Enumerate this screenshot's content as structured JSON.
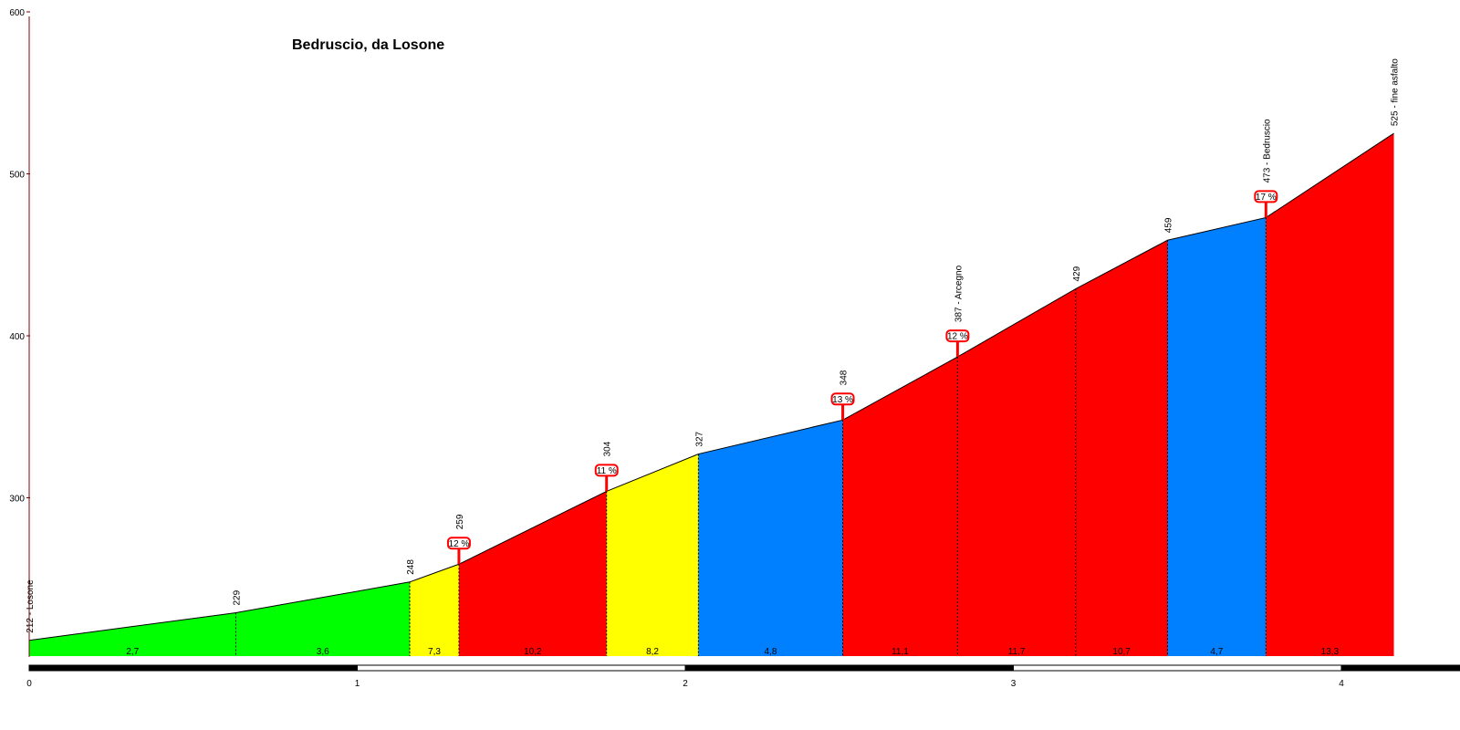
{
  "chart_data": {
    "type": "area",
    "title": "Bedruscio, da Losone",
    "xlim": [
      0,
      4.4
    ],
    "ylim": [
      200,
      600
    ],
    "x_ticks": [
      "0",
      "1",
      "2",
      "3",
      "4"
    ],
    "y_ticks": [
      "300",
      "400",
      "500",
      "600"
    ],
    "points": [
      {
        "x": 0.0,
        "y": 212,
        "label": "212 - Losone"
      },
      {
        "x": 0.63,
        "y": 229,
        "label": "229"
      },
      {
        "x": 1.16,
        "y": 248,
        "label": "248"
      },
      {
        "x": 1.31,
        "y": 259,
        "label": "259"
      },
      {
        "x": 1.76,
        "y": 304,
        "label": "304"
      },
      {
        "x": 2.04,
        "y": 327,
        "label": "327"
      },
      {
        "x": 2.48,
        "y": 348,
        "label": "348"
      },
      {
        "x": 2.83,
        "y": 387,
        "label": "387 - Arcegno"
      },
      {
        "x": 3.19,
        "y": 429,
        "label": "429"
      },
      {
        "x": 3.47,
        "y": 459,
        "label": "459"
      },
      {
        "x": 3.77,
        "y": 473,
        "label": "473 - Bedruscio"
      },
      {
        "x": 4.16,
        "y": 525,
        "label": "525 - fine asfalto"
      }
    ],
    "segments": [
      {
        "from": 0.0,
        "to": 0.63,
        "gradient": "2,7",
        "color": "#00ff00"
      },
      {
        "from": 0.63,
        "to": 1.16,
        "gradient": "3,6",
        "color": "#00ff00"
      },
      {
        "from": 1.16,
        "to": 1.31,
        "gradient": "7,3",
        "color": "#ffff00"
      },
      {
        "from": 1.31,
        "to": 1.76,
        "gradient": "10,2",
        "color": "#ff0000"
      },
      {
        "from": 1.76,
        "to": 2.04,
        "gradient": "8,2",
        "color": "#ffff00"
      },
      {
        "from": 2.04,
        "to": 2.48,
        "gradient": "4,8",
        "color": "#0080ff"
      },
      {
        "from": 2.48,
        "to": 2.83,
        "gradient": "11,1",
        "color": "#ff0000"
      },
      {
        "from": 2.83,
        "to": 3.19,
        "gradient": "11,7",
        "color": "#ff0000"
      },
      {
        "from": 3.19,
        "to": 3.47,
        "gradient": "10,7",
        "color": "#ff0000"
      },
      {
        "from": 3.47,
        "to": 3.77,
        "gradient": "4,7",
        "color": "#0080ff"
      },
      {
        "from": 3.77,
        "to": 4.16,
        "gradient": "13,3",
        "color": "#ff0000"
      }
    ],
    "max_gradient_badges": [
      {
        "x": 1.31,
        "y": 259,
        "label": "12 %"
      },
      {
        "x": 1.76,
        "y": 304,
        "label": "11 %"
      },
      {
        "x": 2.48,
        "y": 348,
        "label": "13 %"
      },
      {
        "x": 2.83,
        "y": 387,
        "label": "12 %"
      },
      {
        "x": 3.77,
        "y": 473,
        "label": "17 %"
      }
    ],
    "colors": {
      "axis": "#800000",
      "badge_border": "#ff0000"
    }
  }
}
